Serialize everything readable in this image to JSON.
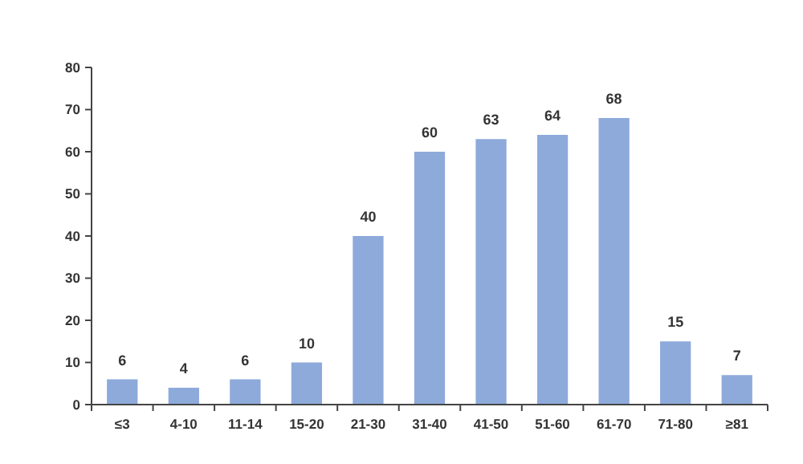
{
  "chart_data": {
    "type": "bar",
    "categories": [
      "≤3",
      "4-10",
      "11-14",
      "15-20",
      "21-30",
      "31-40",
      "41-50",
      "51-60",
      "61-70",
      "71-80",
      "≥81"
    ],
    "values": [
      6,
      4,
      6,
      10,
      40,
      60,
      63,
      64,
      68,
      15,
      7
    ],
    "color": "#8eaadb",
    "data_labels": true,
    "ylim": [
      0,
      80
    ],
    "yticks": [
      0,
      10,
      20,
      30,
      40,
      50,
      60,
      70,
      80
    ],
    "grid": false
  }
}
